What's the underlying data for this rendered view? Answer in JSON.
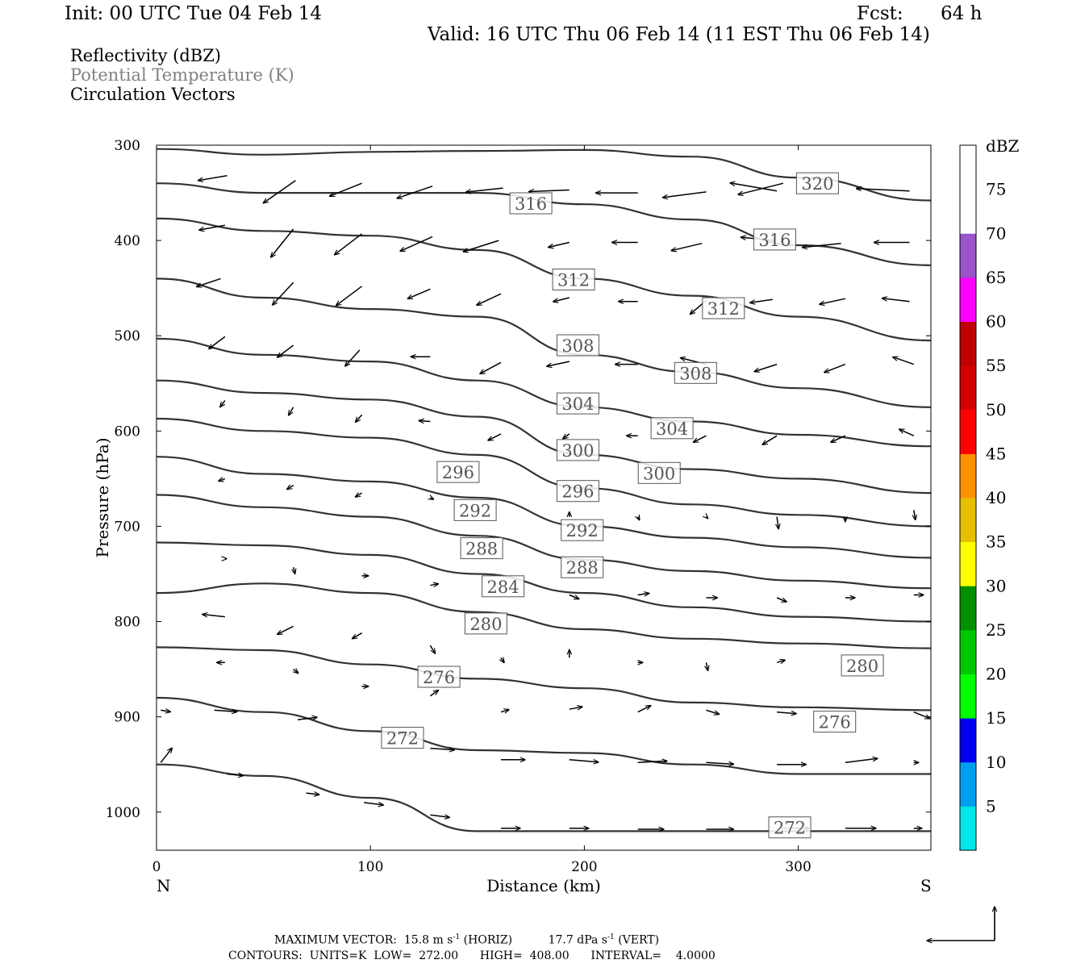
{
  "header": {
    "init": "Init: 00 UTC Tue 04 Feb 14",
    "fcst_label": "Fcst:",
    "fcst_value": "64 h",
    "valid": "Valid: 16 UTC Thu 06 Feb 14 (11 EST Thu 06 Feb 14)"
  },
  "fields": {
    "reflectivity": "Reflectivity (dBZ)",
    "theta": "Potential Temperature (K)",
    "vectors": "Circulation Vectors"
  },
  "footer": {
    "max_vector_label": "MAXIMUM VECTOR:",
    "horiz_value": "15.8 m s",
    "horiz_exp": "-1",
    "horiz_tag": "(HORIZ)",
    "vert_value": "17.7 dPa s",
    "vert_exp": "-1",
    "vert_tag": "(VERT)",
    "contours": "CONTOURS:  UNITS=K  LOW=  272.00      HIGH=  408.00      INTERVAL=    4.0000"
  },
  "colors": {
    "contour": "#333333",
    "vector": "#000000",
    "theta_text": "#808080"
  },
  "chart_data": {
    "type": "cross-section",
    "xlabel": "Distance (km)",
    "ylabel": "Pressure (hPa)",
    "xlim": [
      0,
      362
    ],
    "ylim": [
      1040,
      300
    ],
    "x_ticks": [
      "0",
      "100",
      "200",
      "300"
    ],
    "y_ticks": [
      "300",
      "400",
      "500",
      "600",
      "700",
      "800",
      "900",
      "1000"
    ],
    "x_end_labels": {
      "left": "N",
      "right": "S"
    },
    "colorbar": {
      "title": "dBZ",
      "levels": [
        "5",
        "10",
        "15",
        "20",
        "25",
        "30",
        "35",
        "40",
        "45",
        "50",
        "55",
        "60",
        "65",
        "70",
        "75"
      ],
      "colors": [
        "#00e8e8",
        "#00a0f0",
        "#0000f0",
        "#00ff00",
        "#00c800",
        "#009000",
        "#ffff00",
        "#e6c000",
        "#ff9000",
        "#ff0000",
        "#d60000",
        "#c00000",
        "#ff00ff",
        "#9955c9",
        "#ffffff"
      ]
    },
    "theta_contours": [
      {
        "value": 320,
        "x": [
          0,
          50,
          100,
          150,
          200,
          250,
          300,
          362
        ],
        "p": [
          304,
          310,
          307,
          306,
          305,
          312,
          334,
          358
        ]
      },
      {
        "value": 316,
        "x": [
          0,
          50,
          100,
          150,
          200,
          250,
          300,
          362
        ],
        "p": [
          340,
          350,
          350,
          350,
          362,
          378,
          405,
          426
        ]
      },
      {
        "value": 312,
        "x": [
          0,
          50,
          100,
          150,
          200,
          250,
          300,
          362
        ],
        "p": [
          377,
          390,
          395,
          410,
          440,
          458,
          480,
          505
        ]
      },
      {
        "value": 308,
        "x": [
          0,
          50,
          100,
          150,
          200,
          250,
          300,
          362
        ],
        "p": [
          440,
          460,
          472,
          480,
          520,
          538,
          555,
          575
        ]
      },
      {
        "value": 304,
        "x": [
          0,
          50,
          100,
          150,
          200,
          250,
          300,
          362
        ],
        "p": [
          503,
          520,
          527,
          547,
          575,
          590,
          604,
          616
        ]
      },
      {
        "value": 300,
        "x": [
          0,
          50,
          100,
          150,
          200,
          250,
          300,
          362
        ],
        "p": [
          547,
          560,
          567,
          585,
          625,
          640,
          650,
          665
        ]
      },
      {
        "value": 296,
        "x": [
          0,
          50,
          100,
          150,
          200,
          250,
          300,
          362
        ],
        "p": [
          587,
          600,
          607,
          625,
          660,
          677,
          688,
          700
        ]
      },
      {
        "value": 292,
        "x": [
          0,
          50,
          100,
          150,
          200,
          250,
          300,
          362
        ],
        "p": [
          627,
          645,
          653,
          670,
          700,
          712,
          722,
          733
        ]
      },
      {
        "value": 288,
        "x": [
          0,
          50,
          100,
          150,
          200,
          250,
          300,
          362
        ],
        "p": [
          667,
          680,
          690,
          710,
          735,
          747,
          757,
          765
        ]
      },
      {
        "value": 284,
        "x": [
          0,
          50,
          100,
          150,
          200,
          250,
          300,
          362
        ],
        "p": [
          717,
          720,
          730,
          750,
          770,
          785,
          795,
          800
        ]
      },
      {
        "value": 280,
        "x": [
          0,
          50,
          100,
          150,
          200,
          250,
          300,
          362
        ],
        "p": [
          770,
          760,
          770,
          790,
          808,
          818,
          823,
          828
        ]
      },
      {
        "value": 276,
        "x": [
          0,
          50,
          100,
          150,
          200,
          250,
          300,
          362
        ],
        "p": [
          827,
          830,
          845,
          860,
          870,
          885,
          890,
          893
        ]
      },
      {
        "value": 272,
        "x": [
          0,
          50,
          100,
          150,
          200,
          250,
          300,
          362
        ],
        "p": [
          880,
          895,
          915,
          935,
          938,
          950,
          960,
          960
        ]
      },
      {
        "value": 272,
        "x": [
          0,
          50,
          100,
          150,
          200,
          250,
          300,
          362
        ],
        "p": [
          950,
          962,
          985,
          1020,
          1020,
          1020,
          1020,
          1020
        ]
      }
    ],
    "contour_labels": [
      {
        "text": "320",
        "x": 309,
        "p": 340
      },
      {
        "text": "316",
        "x": 175,
        "p": 361
      },
      {
        "text": "316",
        "x": 289,
        "p": 399
      },
      {
        "text": "312",
        "x": 195,
        "p": 441
      },
      {
        "text": "312",
        "x": 265,
        "p": 471
      },
      {
        "text": "308",
        "x": 197,
        "p": 510
      },
      {
        "text": "308",
        "x": 252,
        "p": 539
      },
      {
        "text": "304",
        "x": 197,
        "p": 571
      },
      {
        "text": "304",
        "x": 241,
        "p": 597
      },
      {
        "text": "300",
        "x": 197,
        "p": 620
      },
      {
        "text": "300",
        "x": 235,
        "p": 644
      },
      {
        "text": "296",
        "x": 141,
        "p": 643
      },
      {
        "text": "296",
        "x": 197,
        "p": 663
      },
      {
        "text": "292",
        "x": 149,
        "p": 683
      },
      {
        "text": "292",
        "x": 199,
        "p": 704
      },
      {
        "text": "288",
        "x": 152,
        "p": 723
      },
      {
        "text": "288",
        "x": 199,
        "p": 743
      },
      {
        "text": "284",
        "x": 162,
        "p": 763
      },
      {
        "text": "280",
        "x": 154,
        "p": 802
      },
      {
        "text": "280",
        "x": 330,
        "p": 846
      },
      {
        "text": "276",
        "x": 132,
        "p": 858
      },
      {
        "text": "276",
        "x": 317,
        "p": 905
      },
      {
        "text": "272",
        "x": 115,
        "p": 922
      },
      {
        "text": "272",
        "x": 296,
        "p": 1016
      }
    ],
    "vectors": [
      {
        "x": 33,
        "p": 332,
        "dx": -18,
        "dp": 6
      },
      {
        "x": 65,
        "p": 337,
        "dx": -20,
        "dp": 28
      },
      {
        "x": 96,
        "p": 340,
        "dx": -20,
        "dp": 16
      },
      {
        "x": 129,
        "p": 343,
        "dx": -22,
        "dp": 15
      },
      {
        "x": 162,
        "p": 345,
        "dx": -23,
        "dp": 5
      },
      {
        "x": 193,
        "p": 347,
        "dx": -25,
        "dp": 2
      },
      {
        "x": 225,
        "p": 350,
        "dx": -26,
        "dp": 0
      },
      {
        "x": 257,
        "p": 349,
        "dx": -27,
        "dp": 7
      },
      {
        "x": 290,
        "p": 348,
        "dx": -29,
        "dp": -10
      },
      {
        "x": 293,
        "p": 340,
        "dx": -28,
        "dp": 14
      },
      {
        "x": 352,
        "p": 348,
        "dx": -33,
        "dp": -3
      },
      {
        "x": 32,
        "p": 384,
        "dx": -16,
        "dp": 6
      },
      {
        "x": 64,
        "p": 388,
        "dx": -14,
        "dp": 35
      },
      {
        "x": 96,
        "p": 393,
        "dx": -17,
        "dp": 26
      },
      {
        "x": 129,
        "p": 396,
        "dx": -20,
        "dp": 18
      },
      {
        "x": 160,
        "p": 400,
        "dx": -22,
        "dp": 14
      },
      {
        "x": 193,
        "p": 402,
        "dx": -13,
        "dp": 6
      },
      {
        "x": 225,
        "p": 402,
        "dx": -16,
        "dp": 0
      },
      {
        "x": 255,
        "p": 403,
        "dx": -19,
        "dp": 9
      },
      {
        "x": 289,
        "p": 400,
        "dx": -21,
        "dp": -4
      },
      {
        "x": 320,
        "p": 403,
        "dx": -24,
        "dp": 5
      },
      {
        "x": 352,
        "p": 402,
        "dx": -22,
        "dp": 0
      },
      {
        "x": 30,
        "p": 440,
        "dx": -15,
        "dp": 10
      },
      {
        "x": 64,
        "p": 444,
        "dx": -13,
        "dp": 28
      },
      {
        "x": 96,
        "p": 448,
        "dx": -16,
        "dp": 24
      },
      {
        "x": 128,
        "p": 451,
        "dx": -14,
        "dp": 12
      },
      {
        "x": 161,
        "p": 456,
        "dx": -15,
        "dp": 14
      },
      {
        "x": 193,
        "p": 460,
        "dx": -10,
        "dp": 5
      },
      {
        "x": 225,
        "p": 464,
        "dx": -12,
        "dp": 0
      },
      {
        "x": 257,
        "p": 463,
        "dx": -10,
        "dp": 17
      },
      {
        "x": 288,
        "p": 462,
        "dx": -14,
        "dp": 4
      },
      {
        "x": 322,
        "p": 461,
        "dx": -16,
        "dp": 7
      },
      {
        "x": 352,
        "p": 464,
        "dx": -17,
        "dp": -4
      },
      {
        "x": 32,
        "p": 501,
        "dx": -10,
        "dp": 15
      },
      {
        "x": 64,
        "p": 510,
        "dx": -10,
        "dp": 15
      },
      {
        "x": 95,
        "p": 515,
        "dx": -9,
        "dp": 20
      },
      {
        "x": 128,
        "p": 522,
        "dx": -12,
        "dp": 0
      },
      {
        "x": 161,
        "p": 528,
        "dx": -13,
        "dp": 14
      },
      {
        "x": 193,
        "p": 527,
        "dx": -14,
        "dp": 6
      },
      {
        "x": 225,
        "p": 530,
        "dx": -14,
        "dp": 0
      },
      {
        "x": 257,
        "p": 530,
        "dx": -16,
        "dp": -8
      },
      {
        "x": 290,
        "p": 530,
        "dx": -14,
        "dp": 9
      },
      {
        "x": 322,
        "p": 530,
        "dx": -13,
        "dp": 10
      },
      {
        "x": 354,
        "p": 530,
        "dx": -13,
        "dp": -9
      },
      {
        "x": 32,
        "p": 568,
        "dx": -3,
        "dp": 8
      },
      {
        "x": 64,
        "p": 575,
        "dx": -3,
        "dp": 10
      },
      {
        "x": 96,
        "p": 583,
        "dx": -4,
        "dp": 9
      },
      {
        "x": 128,
        "p": 590,
        "dx": -7,
        "dp": -1
      },
      {
        "x": 161,
        "p": 603,
        "dx": -8,
        "dp": 8
      },
      {
        "x": 193,
        "p": 603,
        "dx": -4,
        "dp": 6
      },
      {
        "x": 225,
        "p": 605,
        "dx": -7,
        "dp": 0
      },
      {
        "x": 257,
        "p": 605,
        "dx": -8,
        "dp": 8
      },
      {
        "x": 290,
        "p": 605,
        "dx": -9,
        "dp": 11
      },
      {
        "x": 322,
        "p": 605,
        "dx": -9,
        "dp": 8
      },
      {
        "x": 354,
        "p": 605,
        "dx": -9,
        "dp": -8
      },
      {
        "x": 32,
        "p": 650,
        "dx": -4,
        "dp": 3
      },
      {
        "x": 64,
        "p": 657,
        "dx": -4,
        "dp": 5
      },
      {
        "x": 96,
        "p": 665,
        "dx": -4,
        "dp": 5
      },
      {
        "x": 128,
        "p": 670,
        "dx": 2,
        "dp": 2
      },
      {
        "x": 193,
        "p": 690,
        "dx": 0,
        "dp": -6
      },
      {
        "x": 225,
        "p": 690,
        "dx": 1,
        "dp": 4
      },
      {
        "x": 257,
        "p": 690,
        "dx": 1,
        "dp": 2
      },
      {
        "x": 290,
        "p": 690,
        "dx": 1,
        "dp": 15
      },
      {
        "x": 322,
        "p": 690,
        "dx": 0,
        "dp": 6
      },
      {
        "x": 354,
        "p": 683,
        "dx": 1,
        "dp": 12
      },
      {
        "x": 32,
        "p": 734,
        "dx": 1,
        "dp": 0
      },
      {
        "x": 64,
        "p": 743,
        "dx": 1,
        "dp": 8
      },
      {
        "x": 96,
        "p": 752,
        "dx": 4,
        "dp": 0
      },
      {
        "x": 128,
        "p": 762,
        "dx": 5,
        "dp": -2
      },
      {
        "x": 193,
        "p": 772,
        "dx": 6,
        "dp": 5
      },
      {
        "x": 225,
        "p": 772,
        "dx": 7,
        "dp": -2
      },
      {
        "x": 257,
        "p": 775,
        "dx": 7,
        "dp": 0
      },
      {
        "x": 290,
        "p": 775,
        "dx": 6,
        "dp": 5
      },
      {
        "x": 322,
        "p": 775,
        "dx": 6,
        "dp": 0
      },
      {
        "x": 354,
        "p": 772,
        "dx": 6,
        "dp": 0
      },
      {
        "x": 32,
        "p": 795,
        "dx": -14,
        "dp": -3
      },
      {
        "x": 64,
        "p": 805,
        "dx": -10,
        "dp": 10
      },
      {
        "x": 96,
        "p": 812,
        "dx": -6,
        "dp": 7
      },
      {
        "x": 128,
        "p": 825,
        "dx": 3,
        "dp": 10
      },
      {
        "x": 161,
        "p": 838,
        "dx": 2,
        "dp": 6
      },
      {
        "x": 193,
        "p": 838,
        "dx": 0,
        "dp": -10
      },
      {
        "x": 225,
        "p": 843,
        "dx": 3,
        "dp": 0
      },
      {
        "x": 257,
        "p": 843,
        "dx": 1,
        "dp": 10
      },
      {
        "x": 290,
        "p": 843,
        "dx": 5,
        "dp": -3
      },
      {
        "x": 32,
        "p": 843,
        "dx": -5,
        "dp": 0
      },
      {
        "x": 64,
        "p": 850,
        "dx": 3,
        "dp": 5
      },
      {
        "x": 96,
        "p": 868,
        "dx": 4,
        "dp": 0
      },
      {
        "x": 128,
        "p": 878,
        "dx": 5,
        "dp": -7
      },
      {
        "x": 161,
        "p": 895,
        "dx": 5,
        "dp": -3
      },
      {
        "x": 193,
        "p": 892,
        "dx": 8,
        "dp": -3
      },
      {
        "x": 225,
        "p": 895,
        "dx": 8,
        "dp": -8
      },
      {
        "x": 257,
        "p": 893,
        "dx": 8,
        "dp": 5
      },
      {
        "x": 290,
        "p": 895,
        "dx": 12,
        "dp": 2
      },
      {
        "x": 354,
        "p": 895,
        "dx": 10,
        "dp": 8
      },
      {
        "x": 2,
        "p": 893,
        "dx": 6,
        "dp": 2
      },
      {
        "x": 27,
        "p": 893,
        "dx": 14,
        "dp": 2
      },
      {
        "x": 66,
        "p": 903,
        "dx": 12,
        "dp": -3
      },
      {
        "x": 2,
        "p": 948,
        "dx": 7,
        "dp": -18
      },
      {
        "x": 128,
        "p": 933,
        "dx": 15,
        "dp": 2
      },
      {
        "x": 161,
        "p": 945,
        "dx": 15,
        "dp": 0
      },
      {
        "x": 193,
        "p": 945,
        "dx": 18,
        "dp": 3
      },
      {
        "x": 225,
        "p": 948,
        "dx": 18,
        "dp": -2
      },
      {
        "x": 257,
        "p": 948,
        "dx": 17,
        "dp": 2
      },
      {
        "x": 290,
        "p": 950,
        "dx": 18,
        "dp": 0
      },
      {
        "x": 322,
        "p": 948,
        "dx": 20,
        "dp": -5
      },
      {
        "x": 354,
        "p": 948,
        "dx": 3,
        "dp": 0
      },
      {
        "x": 33,
        "p": 960,
        "dx": 10,
        "dp": 2
      },
      {
        "x": 70,
        "p": 980,
        "dx": 8,
        "dp": 2
      },
      {
        "x": 97,
        "p": 990,
        "dx": 12,
        "dp": 3
      },
      {
        "x": 128,
        "p": 1003,
        "dx": 12,
        "dp": 3
      },
      {
        "x": 161,
        "p": 1017,
        "dx": 12,
        "dp": 0
      },
      {
        "x": 193,
        "p": 1017,
        "dx": 12,
        "dp": 0
      },
      {
        "x": 225,
        "p": 1018,
        "dx": 16,
        "dp": 0
      },
      {
        "x": 257,
        "p": 1018,
        "dx": 17,
        "dp": 0
      },
      {
        "x": 290,
        "p": 1017,
        "dx": 20,
        "dp": 0
      },
      {
        "x": 322,
        "p": 1017,
        "dx": 19,
        "dp": 0
      },
      {
        "x": 354,
        "p": 1017,
        "dx": 5,
        "dp": 0
      }
    ]
  }
}
